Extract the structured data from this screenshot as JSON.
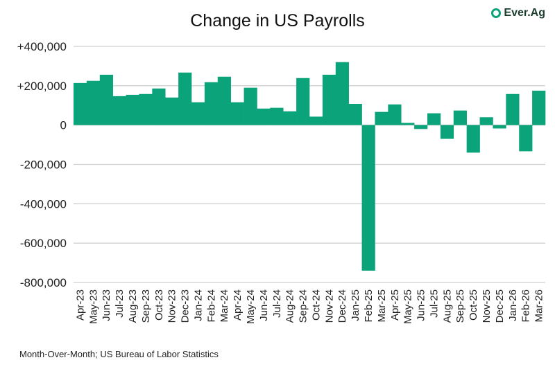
{
  "chart_data": {
    "type": "bar",
    "title": "Change in US Payrolls",
    "xlabel": "",
    "ylabel": "",
    "ylim": [
      -800000,
      400000
    ],
    "yticks": [
      400000,
      200000,
      0,
      -200000,
      -400000,
      -600000,
      -800000
    ],
    "ytick_labels": [
      "+400,000",
      "+200,000",
      "0",
      "-200,000",
      "-400,000",
      "-600,000",
      "-800,000"
    ],
    "grid": true,
    "color": "#0ba37a",
    "categories": [
      "Apr-23",
      "May-23",
      "Jun-23",
      "Jul-23",
      "Aug-23",
      "Sep-23",
      "Oct-23",
      "Nov-23",
      "Dec-23",
      "Jan-24",
      "Feb-24",
      "Mar-24",
      "Apr-24",
      "May-24",
      "Jun-24",
      "Jul-24",
      "Aug-24",
      "Sep-24",
      "Oct-24",
      "Nov-24",
      "Dec-24",
      "Jan-25",
      "Feb-25",
      "Mar-25",
      "Apr-25",
      "May-25",
      "Jun-25",
      "Jul-25",
      "Aug-25",
      "Sep-25",
      "Oct-25",
      "Nov-25",
      "Dec-25",
      "Jan-26",
      "Feb-26",
      "Mar-26"
    ],
    "values": [
      214000,
      225000,
      256000,
      147000,
      154000,
      158000,
      186000,
      140000,
      267000,
      116000,
      218000,
      246000,
      116000,
      190000,
      84000,
      88000,
      70000,
      239000,
      43000,
      256000,
      320000,
      108000,
      -740000,
      67000,
      105000,
      11000,
      -20000,
      60000,
      -70000,
      74000,
      -140000,
      40000,
      -17000,
      158000,
      -133000,
      175000
    ]
  },
  "logo": "Ever.Ag",
  "source": "Month-Over-Month; US Bureau of Labor Statistics"
}
